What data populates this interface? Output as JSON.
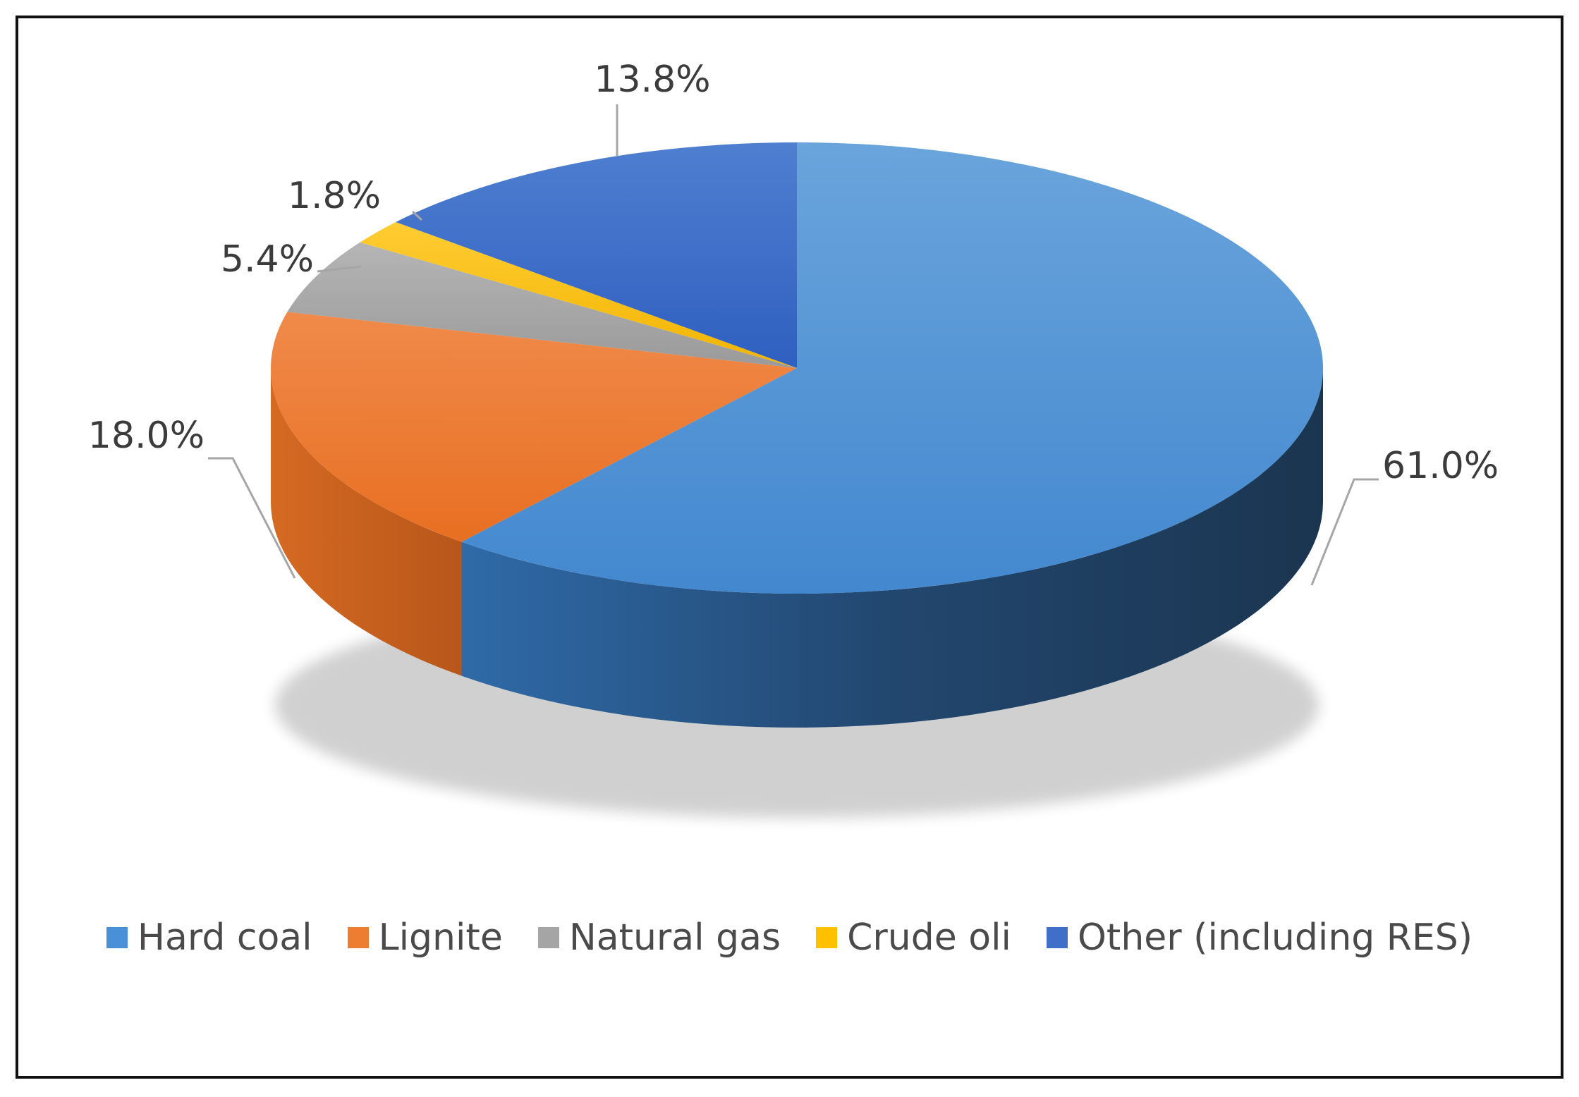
{
  "chart_data": {
    "type": "pie",
    "title": "",
    "slices": [
      {
        "name": "Hard coal",
        "value": 61.0,
        "label": "61.0%",
        "color": "#4a90d9"
      },
      {
        "name": "Lignite",
        "value": 18.0,
        "label": "18.0%",
        "color": "#ed7d31"
      },
      {
        "name": "Natural gas",
        "value": 5.4,
        "label": "5.4%",
        "color": "#a5a5a5"
      },
      {
        "name": "Crude oli",
        "value": 1.8,
        "label": "1.8%",
        "color": "#ffc000"
      },
      {
        "name": "Other (including RES)",
        "value": 13.8,
        "label": "13.8%",
        "color": "#3f6fc9"
      }
    ],
    "legend_position": "bottom",
    "style": "3d"
  }
}
